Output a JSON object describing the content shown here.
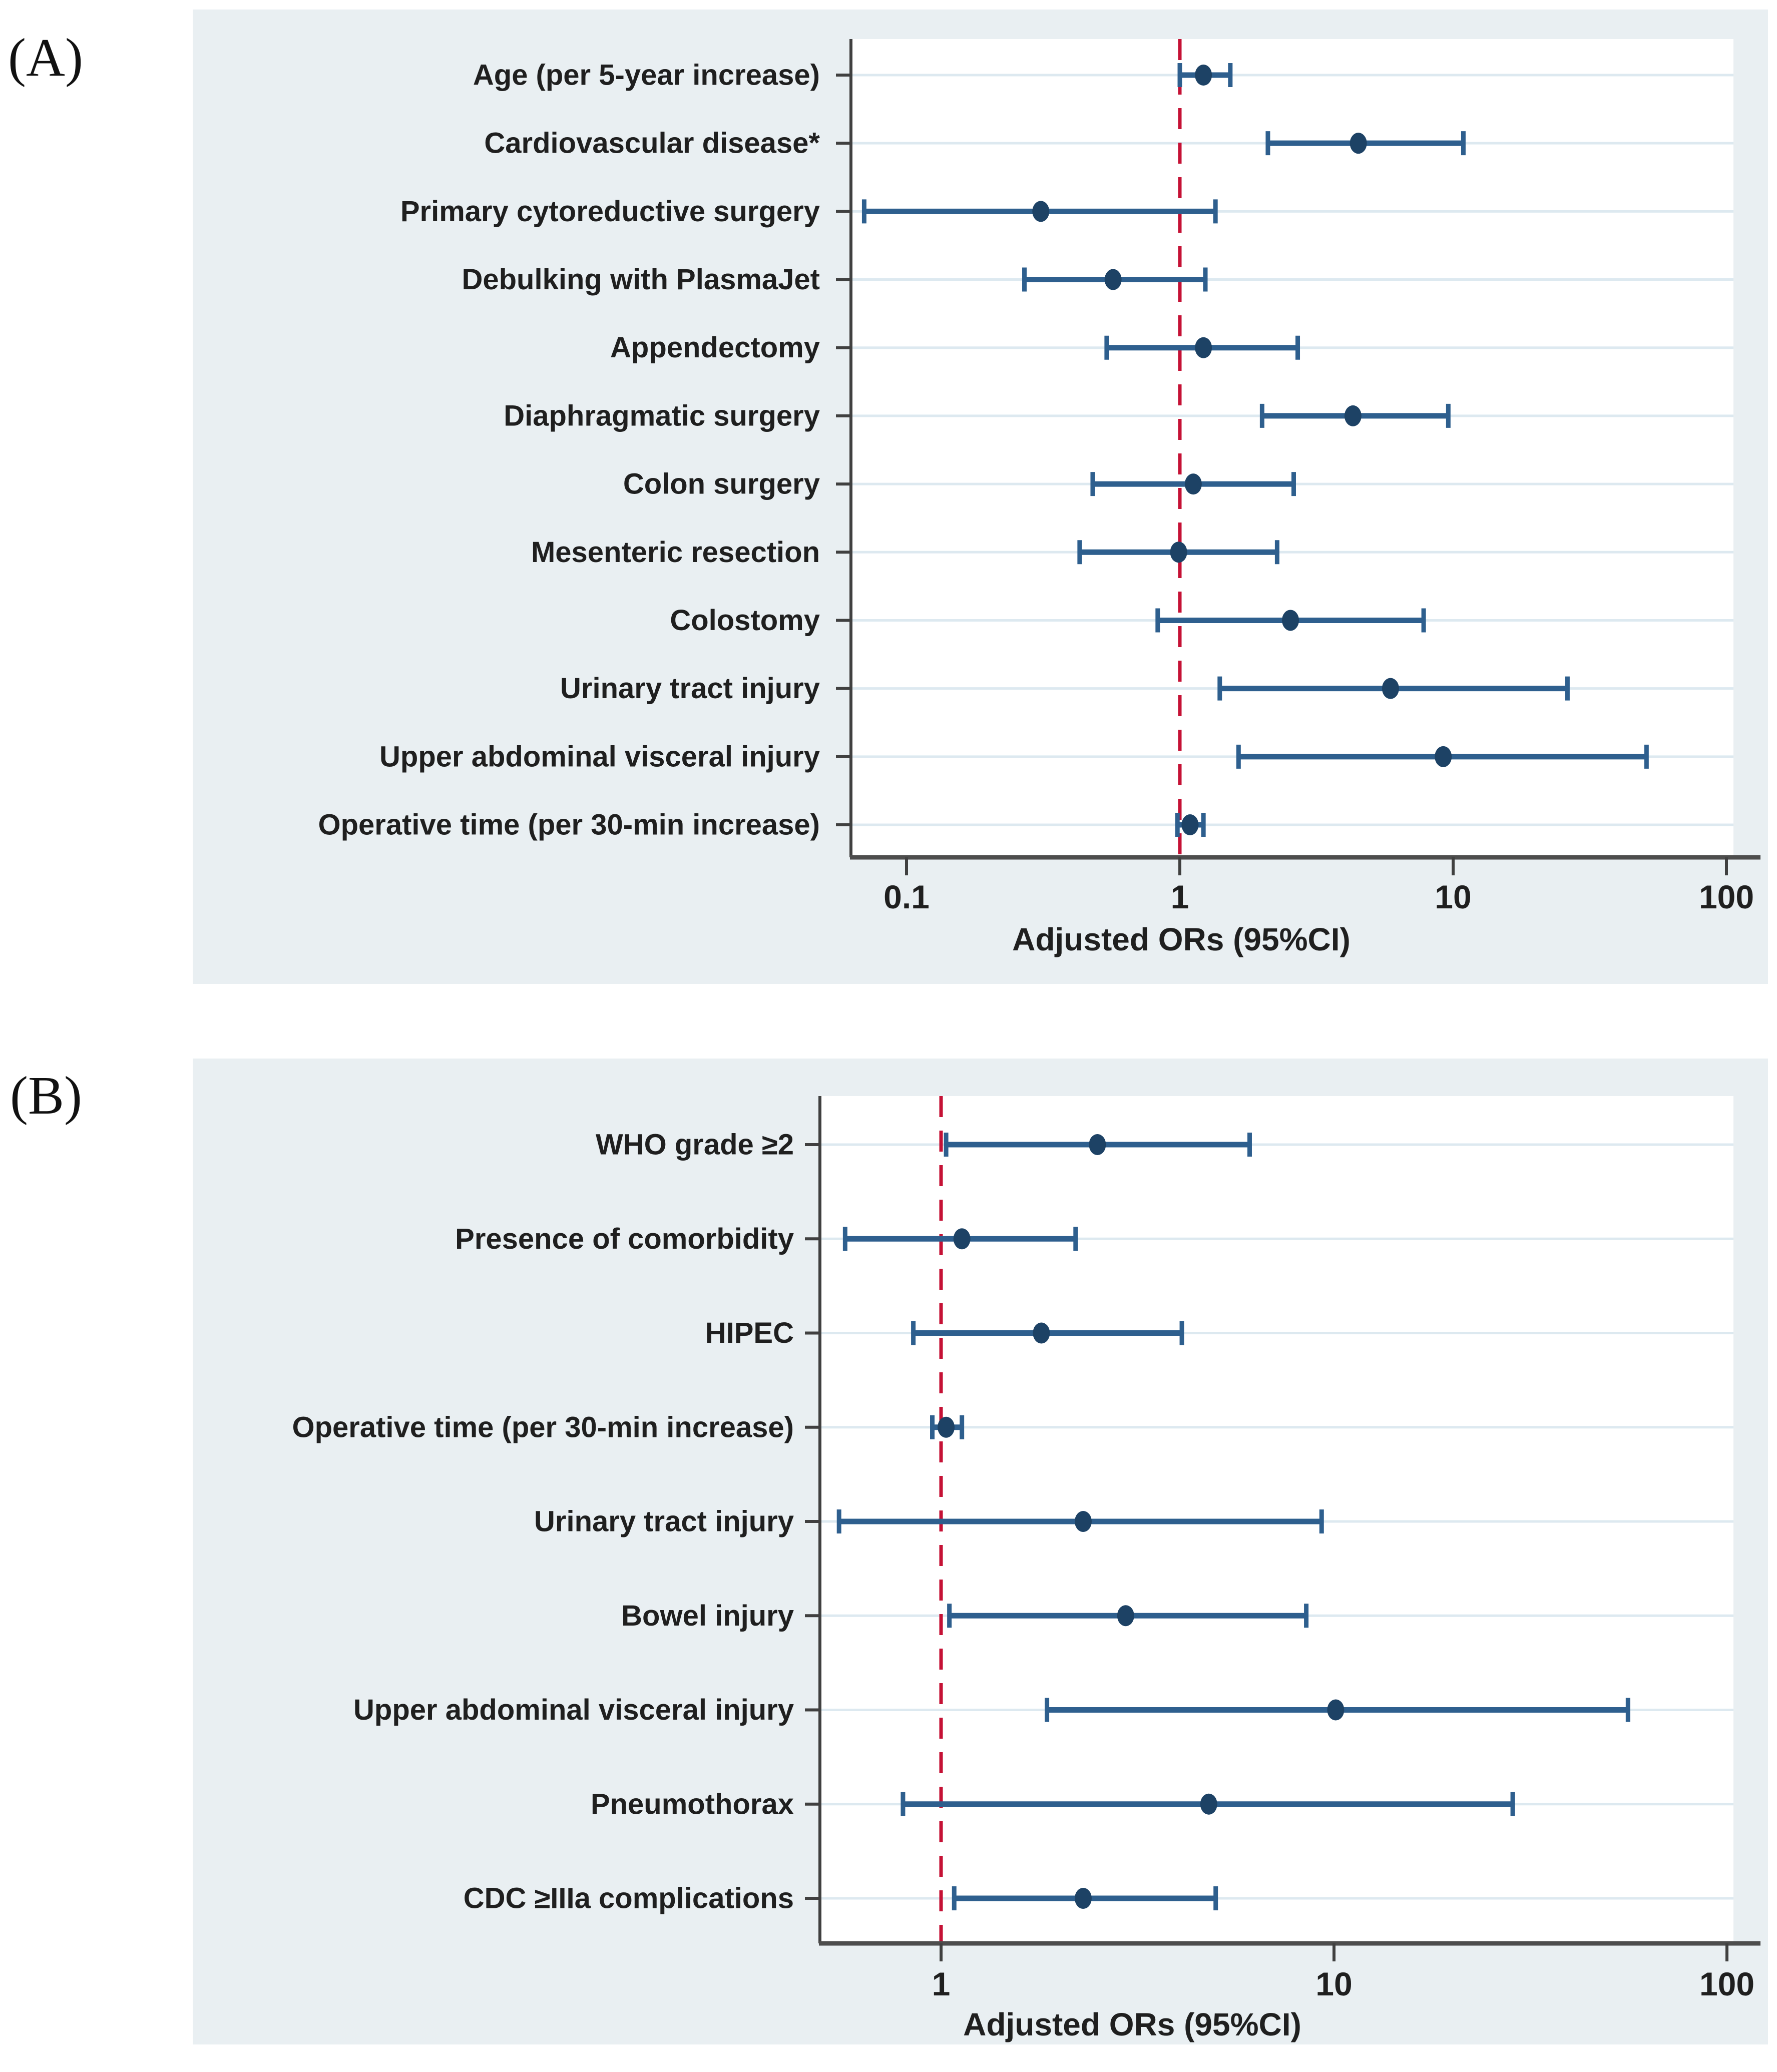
{
  "figure": {
    "panel_a_label": "(A)",
    "panel_b_label": "(B)"
  },
  "colors": {
    "panel_bg": "#e9eff2",
    "plot_bg": "#ffffff",
    "grid": "#dde9f0",
    "axis": "#404040",
    "baseline": "#4d4d4d",
    "marker": "#1d4265",
    "ci": "#2e5f8e",
    "ref_line": "#c51135",
    "text": "#1f1f1f"
  },
  "chart_data": [
    {
      "id": "panel-a",
      "type": "forest-plot",
      "panel_label": "(A)",
      "xlabel": "Adjusted ORs (95%CI)",
      "x_scale": "log10",
      "x_ticks": [
        "0.1",
        "1",
        "10",
        "100"
      ],
      "xlim": [
        0.063,
        106
      ],
      "ref_line": 1,
      "grid": true,
      "rows": [
        {
          "label": "Age (per 5-year increase)",
          "or": 1.22,
          "ci_low": 1.0,
          "ci_high": 1.53
        },
        {
          "label": "Cardiovascular disease*",
          "or": 4.5,
          "ci_low": 2.1,
          "ci_high": 10.9
        },
        {
          "label": "Primary cytoreductive surgery",
          "or": 0.31,
          "ci_low": 0.07,
          "ci_high": 1.35
        },
        {
          "label": "Debulking with PlasmaJet",
          "or": 0.57,
          "ci_low": 0.27,
          "ci_high": 1.24
        },
        {
          "label": "Appendectomy",
          "or": 1.22,
          "ci_low": 0.54,
          "ci_high": 2.7
        },
        {
          "label": "Diaphragmatic surgery",
          "or": 4.3,
          "ci_low": 2.0,
          "ci_high": 9.6
        },
        {
          "label": "Colon surgery",
          "or": 1.12,
          "ci_low": 0.48,
          "ci_high": 2.61
        },
        {
          "label": "Mesenteric resection",
          "or": 0.99,
          "ci_low": 0.43,
          "ci_high": 2.27
        },
        {
          "label": "Colostomy",
          "or": 2.54,
          "ci_low": 0.83,
          "ci_high": 7.8
        },
        {
          "label": "Urinary tract injury",
          "or": 5.9,
          "ci_low": 1.4,
          "ci_high": 26.2
        },
        {
          "label": "Upper abdominal visceral injury",
          "or": 9.2,
          "ci_low": 1.64,
          "ci_high": 51.0
        },
        {
          "label": "Operative time (per 30-min increase)",
          "or": 1.09,
          "ci_low": 0.98,
          "ci_high": 1.22
        }
      ]
    },
    {
      "id": "panel-b",
      "type": "forest-plot",
      "panel_label": "(B)",
      "xlabel": "Adjusted ORs (95%CI)",
      "x_scale": "log10",
      "x_ticks": [
        "1",
        "10",
        "100"
      ],
      "xlim": [
        0.49,
        104
      ],
      "ref_line": 1,
      "grid": true,
      "rows": [
        {
          "label": "WHO grade ≥2",
          "or": 2.5,
          "ci_low": 1.03,
          "ci_high": 6.1
        },
        {
          "label": "Presence of comorbidity",
          "or": 1.13,
          "ci_low": 0.57,
          "ci_high": 2.2
        },
        {
          "label": "HIPEC",
          "or": 1.8,
          "ci_low": 0.85,
          "ci_high": 4.1
        },
        {
          "label": "Operative time (per 30-min increase)",
          "or": 1.03,
          "ci_low": 0.95,
          "ci_high": 1.13
        },
        {
          "label": "Urinary tract injury",
          "or": 2.3,
          "ci_low": 0.55,
          "ci_high": 9.3
        },
        {
          "label": "Bowel injury",
          "or": 2.95,
          "ci_low": 1.05,
          "ci_high": 8.5
        },
        {
          "label": "Upper abdominal visceral injury",
          "or": 10.1,
          "ci_low": 1.86,
          "ci_high": 56.0
        },
        {
          "label": "Pneumothorax",
          "or": 4.8,
          "ci_low": 0.8,
          "ci_high": 28.5
        },
        {
          "label": "CDC ≥IIIa complications",
          "or": 2.3,
          "ci_low": 1.08,
          "ci_high": 5.0
        }
      ]
    }
  ]
}
